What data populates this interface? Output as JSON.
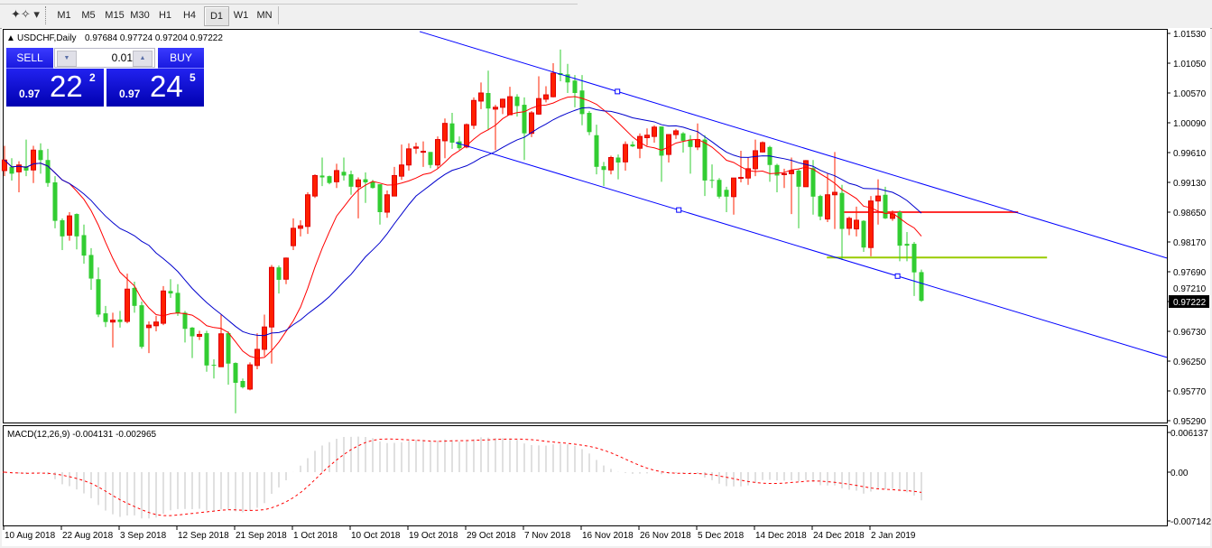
{
  "toolbar": {
    "tool_icon": "line-studies-icon",
    "timeframes": [
      "M1",
      "M5",
      "M15",
      "M30",
      "H1",
      "H4",
      "D1",
      "W1",
      "MN"
    ],
    "active_timeframe": "D1"
  },
  "chart": {
    "header": "USDCHF,Daily",
    "ohlc_readout": "0.97684 0.97724 0.97204 0.97222",
    "current_price_label": "0.97222",
    "colors": {
      "bull_candle": "#ff2000",
      "bear_candle": "#32cd32",
      "ma_fast": "#ff0000",
      "ma_slow": "#0000cd",
      "channel": "#0000ff",
      "level_red": "#ff3030",
      "level_green": "#99cc00",
      "macd_hist": "#c0c0c0",
      "macd_signal": "#ff0000",
      "background": "#ffffff"
    }
  },
  "one_click": {
    "sell_label": "SELL",
    "buy_label": "BUY",
    "lot_value": "0.01",
    "sell_price": {
      "prefix": "0.97",
      "big": "22",
      "sup": "2"
    },
    "buy_price": {
      "prefix": "0.97",
      "big": "24",
      "sup": "5"
    }
  },
  "macd": {
    "label": "MACD(12,26,9) -0.004131 -0.002965",
    "axis_ticks": [
      "0.006137",
      "0.00",
      "-0.007142"
    ]
  },
  "chart_data": {
    "type": "candlestick",
    "symbol": "USDCHF",
    "timeframe": "Daily",
    "price_ticks": [
      "1.01530",
      "1.01050",
      "1.00570",
      "1.00090",
      "0.99610",
      "0.99130",
      "0.98650",
      "0.98170",
      "0.97690",
      "0.97210",
      "0.96730",
      "0.96250",
      "0.95770",
      "0.95290"
    ],
    "date_labels": [
      "10 Aug 2018",
      "22 Aug 2018",
      "3 Sep 2018",
      "12 Sep 2018",
      "21 Sep 2018",
      "1 Oct 2018",
      "10 Oct 2018",
      "19 Oct 2018",
      "29 Oct 2018",
      "7 Nov 2018",
      "16 Nov 2018",
      "26 Nov 2018",
      "5 Dec 2018",
      "14 Dec 2018",
      "24 Dec 2018",
      "2 Jan 2019"
    ],
    "date_label_every_bars": 8,
    "ohlc": [
      [
        0.9932,
        0.9972,
        0.9923,
        0.9949
      ],
      [
        0.9938,
        0.9952,
        0.9916,
        0.9927
      ],
      [
        0.993,
        0.9947,
        0.9897,
        0.9941
      ],
      [
        0.9939,
        0.9982,
        0.9923,
        0.9932
      ],
      [
        0.9933,
        0.9972,
        0.9912,
        0.9965
      ],
      [
        0.9965,
        0.9976,
        0.9927,
        0.9949
      ],
      [
        0.9949,
        0.9967,
        0.9906,
        0.9912
      ],
      [
        0.9913,
        0.9923,
        0.9839,
        0.9851
      ],
      [
        0.9852,
        0.9855,
        0.9804,
        0.9826
      ],
      [
        0.9828,
        0.9865,
        0.9819,
        0.9859
      ],
      [
        0.9862,
        0.9863,
        0.9805,
        0.9826
      ],
      [
        0.9828,
        0.9845,
        0.9782,
        0.9795
      ],
      [
        0.9796,
        0.9807,
        0.974,
        0.9758
      ],
      [
        0.9757,
        0.9776,
        0.9696,
        0.97
      ],
      [
        0.9702,
        0.9714,
        0.968,
        0.9688
      ],
      [
        0.9688,
        0.9703,
        0.9647,
        0.9691
      ],
      [
        0.9692,
        0.9706,
        0.9679,
        0.9688
      ],
      [
        0.9689,
        0.9766,
        0.9686,
        0.9741
      ],
      [
        0.9743,
        0.9753,
        0.9703,
        0.9714
      ],
      [
        0.9715,
        0.9721,
        0.9645,
        0.9648
      ],
      [
        0.9679,
        0.9689,
        0.9638,
        0.9683
      ],
      [
        0.9682,
        0.9698,
        0.9673,
        0.9688
      ],
      [
        0.9686,
        0.9746,
        0.9683,
        0.9738
      ],
      [
        0.9738,
        0.9757,
        0.9727,
        0.9734
      ],
      [
        0.9735,
        0.9749,
        0.9698,
        0.9702
      ],
      [
        0.9703,
        0.9706,
        0.9655,
        0.9677
      ],
      [
        0.9679,
        0.968,
        0.963,
        0.9665
      ],
      [
        0.9665,
        0.9674,
        0.9659,
        0.9668
      ],
      [
        0.967,
        0.9674,
        0.9608,
        0.9618
      ],
      [
        0.9619,
        0.9628,
        0.9597,
        0.9618
      ],
      [
        0.9616,
        0.97,
        0.9616,
        0.9669
      ],
      [
        0.967,
        0.9673,
        0.9587,
        0.9621
      ],
      [
        0.9622,
        0.9623,
        0.9541,
        0.959
      ],
      [
        0.9593,
        0.9597,
        0.9581,
        0.9583
      ],
      [
        0.958,
        0.9623,
        0.9578,
        0.9619
      ],
      [
        0.9618,
        0.967,
        0.9612,
        0.9644
      ],
      [
        0.9644,
        0.97,
        0.9633,
        0.968
      ],
      [
        0.968,
        0.978,
        0.9621,
        0.9776
      ],
      [
        0.9776,
        0.9779,
        0.9734,
        0.9756
      ],
      [
        0.9757,
        0.9792,
        0.9749,
        0.9791
      ],
      [
        0.9811,
        0.9855,
        0.9804,
        0.9839
      ],
      [
        0.9839,
        0.9852,
        0.9826,
        0.9843
      ],
      [
        0.9842,
        0.9897,
        0.983,
        0.9893
      ],
      [
        0.9891,
        0.9926,
        0.9888,
        0.9924
      ],
      [
        0.9924,
        0.9953,
        0.9907,
        0.9921
      ],
      [
        0.9923,
        0.9924,
        0.991,
        0.9912
      ],
      [
        0.9914,
        0.9943,
        0.9904,
        0.9932
      ],
      [
        0.993,
        0.9953,
        0.9916,
        0.9924
      ],
      [
        0.9926,
        0.9932,
        0.9893,
        0.9906
      ],
      [
        0.9906,
        0.9921,
        0.9855,
        0.9917
      ],
      [
        0.9918,
        0.9929,
        0.988,
        0.9913
      ],
      [
        0.9914,
        0.9917,
        0.9903,
        0.9904
      ],
      [
        0.991,
        0.991,
        0.9845,
        0.9865
      ],
      [
        0.9865,
        0.99,
        0.9856,
        0.9893
      ],
      [
        0.9891,
        0.9938,
        0.9891,
        0.9924
      ],
      [
        0.9923,
        0.9974,
        0.9917,
        0.9941
      ],
      [
        0.9941,
        0.9976,
        0.9932,
        0.9967
      ],
      [
        0.9968,
        0.9977,
        0.9959,
        0.997
      ],
      [
        0.9962,
        0.9979,
        0.9938,
        0.9963
      ],
      [
        0.9962,
        0.9962,
        0.9936,
        0.9941
      ],
      [
        0.9941,
        0.9987,
        0.9935,
        0.9982
      ],
      [
        0.998,
        1.0016,
        0.9952,
        1.0008
      ],
      [
        1.0008,
        1.0025,
        0.9967,
        0.9977
      ],
      [
        0.9979,
        0.9987,
        0.9965,
        0.9968
      ],
      [
        0.997,
        1.0008,
        0.9968,
        1.0006
      ],
      [
        1.0005,
        1.005,
        0.9999,
        1.0045
      ],
      [
        1.0044,
        1.0074,
        1.0031,
        1.0057
      ],
      [
        1.0057,
        1.0093,
        0.9997,
        1.0032
      ],
      [
        1.0031,
        1.0038,
        0.9965,
        1.0034
      ],
      [
        1.0034,
        1.0048,
        1.0023,
        1.0047
      ],
      [
        1.0022,
        1.0067,
        1.0022,
        1.0051
      ],
      [
        1.0051,
        1.0055,
        1.0019,
        1.0036
      ],
      [
        1.0038,
        1.005,
        0.9949,
        0.9992
      ],
      [
        0.9992,
        1.0028,
        0.9986,
        1.0025
      ],
      [
        1.0023,
        1.0084,
        1.0022,
        1.0048
      ],
      [
        1.0047,
        1.0068,
        1.0042,
        1.0054
      ],
      [
        1.0051,
        1.0105,
        1.005,
        1.0089
      ],
      [
        1.0089,
        1.0127,
        1.0076,
        1.0086
      ],
      [
        1.0087,
        1.0104,
        1.0057,
        1.0074
      ],
      [
        1.0077,
        1.0086,
        1.0034,
        1.0057
      ],
      [
        1.0061,
        1.0086,
        1.0005,
        1.0023
      ],
      [
        1.0025,
        1.0028,
        0.9989,
        0.9994
      ],
      [
        0.9989,
        1.0006,
        0.9926,
        0.9938
      ],
      [
        0.9939,
        0.9946,
        0.9907,
        0.9933
      ],
      [
        0.9933,
        0.9956,
        0.9926,
        0.9953
      ],
      [
        0.9953,
        0.9958,
        0.9918,
        0.9945
      ],
      [
        0.9946,
        0.9979,
        0.9932,
        0.9974
      ],
      [
        0.9974,
        0.9979,
        0.997,
        0.9971
      ],
      [
        0.9968,
        0.9992,
        0.9952,
        0.9987
      ],
      [
        0.9985,
        1.0,
        0.9972,
        0.9989
      ],
      [
        0.9987,
        1.0005,
        0.9977,
        1.0002
      ],
      [
        1.0003,
        1.0003,
        0.9914,
        0.9956
      ],
      [
        0.9958,
        0.999,
        0.9945,
        0.999
      ],
      [
        0.999,
        0.9999,
        0.9983,
        0.9996
      ],
      [
        0.9992,
        0.9994,
        0.9961,
        0.998
      ],
      [
        0.9982,
        0.9989,
        0.9927,
        0.997
      ],
      [
        0.997,
        1.0008,
        0.9965,
        0.9982
      ],
      [
        0.9982,
        0.9989,
        0.9891,
        0.9916
      ],
      [
        0.9917,
        0.9942,
        0.9904,
        0.9916
      ],
      [
        0.9917,
        0.992,
        0.9887,
        0.989
      ],
      [
        0.9901,
        0.9906,
        0.9865,
        0.989
      ],
      [
        0.989,
        0.992,
        0.9861,
        0.992
      ],
      [
        0.992,
        0.9964,
        0.9913,
        0.9921
      ],
      [
        0.992,
        0.9953,
        0.9909,
        0.9935
      ],
      [
        0.9935,
        0.9982,
        0.9923,
        0.9964
      ],
      [
        0.9962,
        0.9979,
        0.9961,
        0.9977
      ],
      [
        0.997,
        0.9972,
        0.9914,
        0.9941
      ],
      [
        0.9941,
        0.9943,
        0.9897,
        0.9924
      ],
      [
        0.9926,
        0.9935,
        0.9904,
        0.9927
      ],
      [
        0.9927,
        0.9953,
        0.9862,
        0.9932
      ],
      [
        0.9932,
        0.9935,
        0.9839,
        0.9906
      ],
      [
        0.9906,
        0.9949,
        0.9906,
        0.9948
      ],
      [
        0.9936,
        0.9949,
        0.9861,
        0.989
      ],
      [
        0.9891,
        0.9893,
        0.9852,
        0.9858
      ],
      [
        0.9854,
        0.9927,
        0.9849,
        0.9893
      ],
      [
        0.9893,
        0.9962,
        0.9838,
        0.9897
      ],
      [
        0.9896,
        0.9909,
        0.9788,
        0.9838
      ],
      [
        0.9839,
        0.9858,
        0.9828,
        0.9855
      ],
      [
        0.9838,
        0.9874,
        0.9826,
        0.9852
      ],
      [
        0.9851,
        0.9852,
        0.9801,
        0.9808
      ],
      [
        0.9808,
        0.9891,
        0.9794,
        0.9883
      ],
      [
        0.9883,
        0.9918,
        0.9845,
        0.9891
      ],
      [
        0.9893,
        0.9906,
        0.9854,
        0.9855
      ],
      [
        0.9855,
        0.9868,
        0.9851,
        0.9862
      ],
      [
        0.9865,
        0.9868,
        0.9786,
        0.9811
      ],
      [
        0.9814,
        0.9833,
        0.9786,
        0.9811
      ],
      [
        0.9814,
        0.9817,
        0.973,
        0.9768
      ],
      [
        0.97684,
        0.97724,
        0.97204,
        0.97222
      ]
    ],
    "moving_averages": [
      {
        "type": "fast",
        "color": "#ff0000"
      },
      {
        "type": "slow",
        "color": "#0000cd"
      }
    ],
    "trendlines": [
      {
        "name": "channel-upper",
        "bar1": 57.5,
        "price1": 1.0156,
        "bar2": 161,
        "price2": 0.9791
      },
      {
        "name": "channel-lower",
        "bar1": 62.5,
        "price1": 0.9977,
        "bar2": 161,
        "price2": 0.9631
      }
    ],
    "horizontal_levels": [
      {
        "name": "resistance-level",
        "price": 0.9865,
        "from_bar": 115.9,
        "to_bar": 140.4,
        "color": "#ff3030"
      },
      {
        "name": "support-level",
        "price": 0.9792,
        "from_bar": 113.9,
        "to_bar": 144.4,
        "color": "#99cc00"
      }
    ],
    "macd": {
      "fast": 12,
      "slow": 26,
      "signal": 9,
      "range": [
        -0.007142,
        0.006137
      ]
    }
  }
}
